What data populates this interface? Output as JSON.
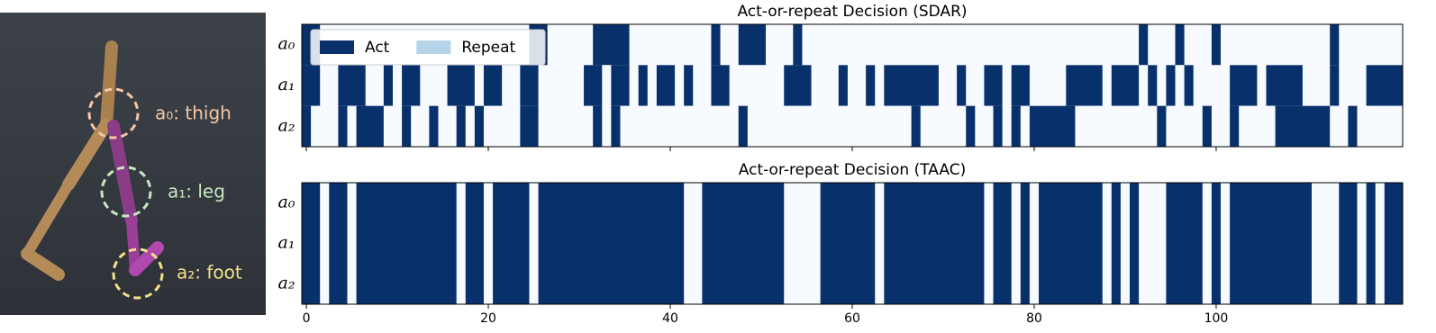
{
  "figure_labels": [
    "a₀: thigh",
    "a₁: leg",
    "a₂: foot"
  ],
  "chart_data": [
    {
      "type": "heatmap",
      "title": "Act-or-repeat Decision (SDAR)",
      "rows": [
        "a₀",
        "a₁",
        "a₂"
      ],
      "cmap": [
        "#f7fbff",
        "#08306b"
      ],
      "legend": [
        {
          "name": "Act",
          "color": "#08306b"
        },
        {
          "name": "Repeat",
          "color": "#b5d4e9"
        }
      ],
      "legend_position": "upper left",
      "xlim": [
        -0.5,
        120.5
      ],
      "xticks": [
        0,
        20,
        40,
        60,
        80,
        100
      ],
      "xtick_labels": false,
      "values": [
        [
          1,
          1,
          0,
          0,
          0,
          0,
          0,
          0,
          0,
          0,
          0,
          0,
          0,
          0,
          0,
          0,
          0,
          0,
          0,
          0,
          0,
          0,
          0,
          0,
          0,
          1,
          1,
          0,
          0,
          0,
          0,
          0,
          1,
          1,
          1,
          1,
          0,
          0,
          0,
          0,
          0,
          0,
          0,
          0,
          0,
          1,
          0,
          0,
          1,
          1,
          1,
          0,
          0,
          0,
          1,
          0,
          0,
          0,
          0,
          0,
          0,
          0,
          0,
          0,
          0,
          0,
          0,
          0,
          0,
          0,
          0,
          0,
          0,
          0,
          0,
          0,
          0,
          0,
          0,
          0,
          0,
          0,
          0,
          0,
          0,
          0,
          0,
          0,
          0,
          0,
          0,
          0,
          1,
          0,
          0,
          0,
          1,
          0,
          0,
          0,
          1,
          0,
          0,
          0,
          0,
          0,
          0,
          0,
          0,
          0,
          0,
          0,
          0,
          1,
          0,
          0,
          0,
          0,
          0,
          0,
          0
        ],
        [
          1,
          1,
          0,
          0,
          1,
          1,
          1,
          0,
          0,
          1,
          0,
          1,
          1,
          0,
          0,
          0,
          1,
          1,
          1,
          0,
          1,
          1,
          0,
          0,
          1,
          1,
          0,
          0,
          0,
          0,
          0,
          1,
          1,
          0,
          1,
          1,
          0,
          1,
          0,
          1,
          1,
          0,
          1,
          0,
          0,
          1,
          1,
          0,
          0,
          0,
          0,
          0,
          0,
          1,
          1,
          1,
          0,
          0,
          0,
          1,
          0,
          0,
          1,
          0,
          1,
          1,
          1,
          1,
          1,
          1,
          0,
          0,
          1,
          0,
          0,
          1,
          1,
          0,
          1,
          1,
          0,
          0,
          0,
          0,
          1,
          1,
          1,
          1,
          0,
          1,
          1,
          1,
          0,
          1,
          0,
          1,
          0,
          1,
          0,
          0,
          0,
          0,
          1,
          1,
          1,
          0,
          1,
          1,
          1,
          1,
          0,
          0,
          0,
          1,
          0,
          0,
          0,
          1,
          1,
          1,
          1
        ],
        [
          1,
          0,
          0,
          0,
          1,
          0,
          1,
          1,
          1,
          0,
          0,
          1,
          0,
          0,
          1,
          0,
          0,
          1,
          0,
          1,
          0,
          0,
          0,
          0,
          1,
          1,
          0,
          0,
          0,
          0,
          0,
          0,
          1,
          0,
          1,
          0,
          0,
          0,
          0,
          0,
          0,
          0,
          0,
          0,
          0,
          0,
          0,
          0,
          1,
          0,
          0,
          0,
          0,
          0,
          0,
          0,
          0,
          0,
          0,
          0,
          0,
          0,
          0,
          0,
          0,
          0,
          0,
          1,
          0,
          0,
          0,
          0,
          0,
          1,
          0,
          0,
          1,
          0,
          1,
          0,
          1,
          1,
          1,
          1,
          1,
          0,
          0,
          0,
          0,
          0,
          0,
          0,
          0,
          0,
          1,
          0,
          0,
          0,
          0,
          1,
          0,
          0,
          1,
          0,
          0,
          0,
          0,
          1,
          1,
          1,
          1,
          1,
          1,
          0,
          0,
          1,
          0,
          0,
          0,
          0,
          0
        ]
      ]
    },
    {
      "type": "heatmap",
      "title": "Act-or-repeat Decision (TAAC)",
      "rows": [
        "a₀",
        "a₁",
        "a₂"
      ],
      "cmap": [
        "#f7fbff",
        "#08306b"
      ],
      "xlim": [
        -0.5,
        120.5
      ],
      "xticks": [
        0,
        20,
        40,
        60,
        80,
        100
      ],
      "xtick_labels": true,
      "values": [
        [
          1,
          1,
          0,
          1,
          1,
          0,
          1,
          1,
          1,
          1,
          1,
          1,
          1,
          1,
          1,
          1,
          1,
          0,
          1,
          1,
          0,
          1,
          1,
          1,
          1,
          0,
          1,
          1,
          1,
          1,
          1,
          1,
          1,
          1,
          1,
          1,
          1,
          1,
          1,
          1,
          1,
          1,
          0,
          0,
          1,
          1,
          1,
          1,
          1,
          1,
          1,
          1,
          1,
          0,
          0,
          0,
          0,
          1,
          1,
          1,
          1,
          1,
          1,
          0,
          1,
          1,
          1,
          1,
          1,
          1,
          1,
          1,
          1,
          1,
          1,
          0,
          1,
          1,
          0,
          1,
          0,
          1,
          1,
          1,
          1,
          1,
          1,
          1,
          0,
          1,
          0,
          1,
          0,
          0,
          0,
          1,
          1,
          1,
          1,
          0,
          1,
          0,
          1,
          1,
          1,
          1,
          1,
          1,
          1,
          1,
          1,
          0,
          0,
          0,
          1,
          1,
          0,
          1,
          0,
          1,
          1
        ],
        [
          1,
          1,
          0,
          1,
          1,
          0,
          1,
          1,
          1,
          1,
          1,
          1,
          1,
          1,
          1,
          1,
          1,
          0,
          1,
          1,
          0,
          1,
          1,
          1,
          1,
          0,
          1,
          1,
          1,
          1,
          1,
          1,
          1,
          1,
          1,
          1,
          1,
          1,
          1,
          1,
          1,
          1,
          0,
          0,
          1,
          1,
          1,
          1,
          1,
          1,
          1,
          1,
          1,
          0,
          0,
          0,
          0,
          1,
          1,
          1,
          1,
          1,
          1,
          0,
          1,
          1,
          1,
          1,
          1,
          1,
          1,
          1,
          1,
          1,
          1,
          0,
          1,
          1,
          0,
          1,
          0,
          1,
          1,
          1,
          1,
          1,
          1,
          1,
          0,
          1,
          0,
          1,
          0,
          0,
          0,
          1,
          1,
          1,
          1,
          0,
          1,
          0,
          1,
          1,
          1,
          1,
          1,
          1,
          1,
          1,
          1,
          0,
          0,
          0,
          1,
          1,
          0,
          1,
          0,
          1,
          1
        ],
        [
          1,
          1,
          0,
          1,
          1,
          0,
          1,
          1,
          1,
          1,
          1,
          1,
          1,
          1,
          1,
          1,
          1,
          0,
          1,
          1,
          0,
          1,
          1,
          1,
          1,
          0,
          1,
          1,
          1,
          1,
          1,
          1,
          1,
          1,
          1,
          1,
          1,
          1,
          1,
          1,
          1,
          1,
          0,
          0,
          1,
          1,
          1,
          1,
          1,
          1,
          1,
          1,
          1,
          0,
          0,
          0,
          0,
          1,
          1,
          1,
          1,
          1,
          1,
          0,
          1,
          1,
          1,
          1,
          1,
          1,
          1,
          1,
          1,
          1,
          1,
          0,
          1,
          1,
          0,
          1,
          0,
          1,
          1,
          1,
          1,
          1,
          1,
          1,
          0,
          1,
          0,
          1,
          0,
          0,
          0,
          1,
          1,
          1,
          1,
          0,
          1,
          0,
          1,
          1,
          1,
          1,
          1,
          1,
          1,
          1,
          1,
          0,
          0,
          0,
          1,
          1,
          0,
          1,
          0,
          1,
          1
        ]
      ]
    }
  ]
}
